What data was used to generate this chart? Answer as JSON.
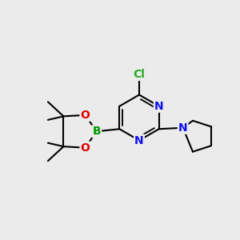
{
  "background_color": "#ebebeb",
  "atom_colors": {
    "C": "#000000",
    "N": "#1010ee",
    "O": "#dd0000",
    "B": "#009900",
    "Cl": "#22aa22",
    "H": "#000000"
  },
  "bond_color": "#000000",
  "bond_width": 1.5,
  "font_size_atom": 10,
  "figsize": [
    3.0,
    3.0
  ],
  "dpi": 100,
  "xlim": [
    0,
    10
  ],
  "ylim": [
    0,
    10
  ]
}
